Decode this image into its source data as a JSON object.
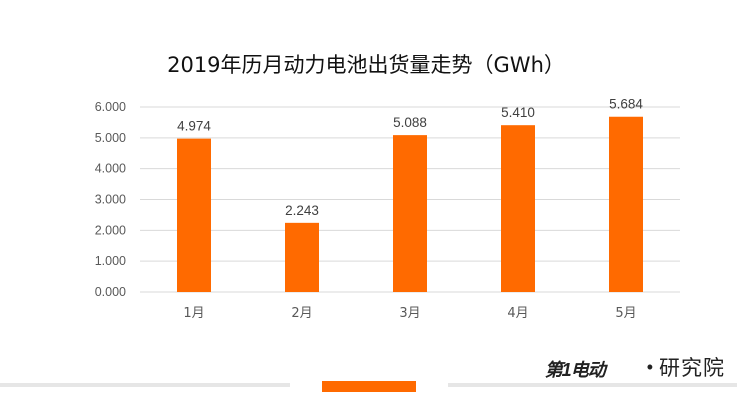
{
  "chart_data": {
    "type": "bar",
    "title": "2019年历月动力电池出货量走势（GWh）",
    "categories": [
      "1月",
      "2月",
      "3月",
      "4月",
      "5月"
    ],
    "values": [
      4.974,
      2.243,
      5.088,
      5.41,
      5.684
    ],
    "data_labels": [
      "4.974",
      "2.243",
      "5.088",
      "5.410",
      "5.684"
    ],
    "y_ticks": [
      "0.000",
      "1.000",
      "2.000",
      "3.000",
      "4.000",
      "5.000",
      "6.000"
    ],
    "ylim": [
      0,
      6
    ],
    "grid": true,
    "legend": "none",
    "bar_color": "#ff6a00",
    "grid_color": "#d9d9d9",
    "text_color": "#595959"
  },
  "brand": {
    "logo_text": "第1电动",
    "separator": "•",
    "name": "研究院"
  },
  "colors": {
    "accent": "#ff6a00"
  }
}
